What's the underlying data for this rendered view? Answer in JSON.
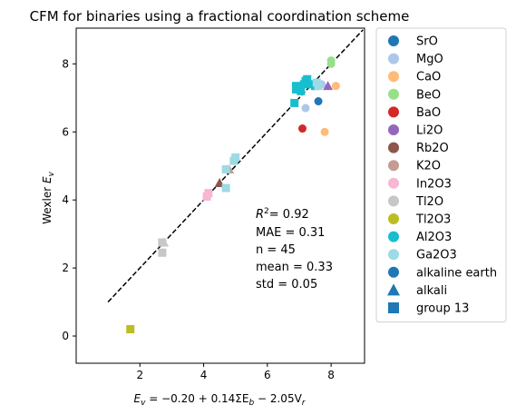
{
  "chart_data": {
    "type": "scatter",
    "title": "CFM for binaries using a fractional coordination scheme",
    "xlabel_parts": [
      "E",
      "v",
      " = −0.20 + 0.14ΣE",
      "b",
      " − 2.05V",
      "r"
    ],
    "ylabel_parts": [
      "Wexler ",
      "E",
      "v"
    ],
    "xlim": [
      0.0,
      9.05
    ],
    "ylim": [
      -0.8,
      9.05
    ],
    "xticks": [
      2,
      4,
      6,
      8
    ],
    "yticks": [
      0,
      2,
      4,
      6,
      8
    ],
    "grid": false,
    "legend_position": "outside-right",
    "reference_line": {
      "style": "dashed",
      "color": "#000000",
      "from": [
        1.0,
        1.0
      ],
      "to": [
        9.0,
        9.0
      ]
    },
    "stats": {
      "r2": "= 0.92",
      "mae": "MAE = 0.31",
      "n": "n = 45",
      "mean": "mean = 0.33",
      "std": "std = 0.05"
    },
    "series": [
      {
        "name": "SrO",
        "color": "#1f77b4",
        "marker": "circle",
        "points": [
          [
            7.6,
            6.9
          ]
        ]
      },
      {
        "name": "MgO",
        "color": "#aec7e8",
        "marker": "circle",
        "points": [
          [
            7.2,
            6.7
          ],
          [
            7.7,
            7.4
          ]
        ]
      },
      {
        "name": "CaO",
        "color": "#ffbb78",
        "marker": "circle",
        "points": [
          [
            7.8,
            6.0
          ],
          [
            8.15,
            7.35
          ]
        ]
      },
      {
        "name": "BeO",
        "color": "#98df8a",
        "marker": "circle",
        "points": [
          [
            8.0,
            8.0
          ],
          [
            8.0,
            8.1
          ]
        ]
      },
      {
        "name": "BaO",
        "color": "#d62728",
        "marker": "circle",
        "points": [
          [
            7.1,
            6.1
          ]
        ]
      },
      {
        "name": "Li2O",
        "color": "#9467bd",
        "marker": "triangle",
        "points": [
          [
            7.9,
            7.35
          ]
        ]
      },
      {
        "name": "Rb2O",
        "color": "#8c564b",
        "marker": "triangle",
        "points": [
          [
            4.5,
            4.5
          ]
        ]
      },
      {
        "name": "K2O",
        "color": "#c49c94",
        "marker": "triangle",
        "points": [
          [
            4.8,
            4.9
          ]
        ]
      },
      {
        "name": "In2O3",
        "color": "#f7b6d2",
        "marker": "square",
        "points": [
          [
            4.1,
            4.1
          ],
          [
            4.15,
            4.2
          ]
        ]
      },
      {
        "name": "Tl2O",
        "color": "#c7c7c7",
        "marker": "triangle",
        "points": [
          [
            2.75,
            2.75
          ]
        ]
      },
      {
        "name": "Tl2O3",
        "color": "#bcbd22",
        "marker": "square",
        "points": [
          [
            1.7,
            0.2
          ]
        ]
      },
      {
        "name": "Al2O3",
        "color": "#17becf",
        "marker": "square",
        "points": [
          [
            6.85,
            6.85
          ],
          [
            6.9,
            7.25
          ],
          [
            6.9,
            7.35
          ],
          [
            7.0,
            7.3
          ],
          [
            7.15,
            7.4
          ],
          [
            7.2,
            7.5
          ],
          [
            7.25,
            7.55
          ],
          [
            7.4,
            7.4
          ],
          [
            7.5,
            7.35
          ],
          [
            7.05,
            7.2
          ]
        ]
      },
      {
        "name": "Ga2O3",
        "color": "#9edae5",
        "marker": "square",
        "points": [
          [
            4.7,
            4.35
          ],
          [
            4.7,
            4.9
          ],
          [
            4.95,
            5.15
          ],
          [
            5.0,
            5.25
          ],
          [
            7.55,
            7.45
          ],
          [
            7.6,
            7.35
          ]
        ]
      },
      {
        "name": "Tl2O3",
        "color": "#c7c7c7",
        "marker": "square",
        "points": [
          [
            2.7,
            2.45
          ],
          [
            2.7,
            2.75
          ]
        ],
        "legend": false
      }
    ],
    "legend_entries": [
      {
        "label": "SrO",
        "color": "#1f77b4",
        "marker": "circle"
      },
      {
        "label": "MgO",
        "color": "#aec7e8",
        "marker": "circle"
      },
      {
        "label": "CaO",
        "color": "#ffbb78",
        "marker": "circle"
      },
      {
        "label": "BeO",
        "color": "#98df8a",
        "marker": "circle"
      },
      {
        "label": "BaO",
        "color": "#d62728",
        "marker": "circle"
      },
      {
        "label": "Li2O",
        "color": "#9467bd",
        "marker": "circle"
      },
      {
        "label": "Rb2O",
        "color": "#8c564b",
        "marker": "circle"
      },
      {
        "label": "K2O",
        "color": "#c49c94",
        "marker": "circle"
      },
      {
        "label": "In2O3",
        "color": "#f7b6d2",
        "marker": "circle"
      },
      {
        "label": "Tl2O",
        "color": "#c7c7c7",
        "marker": "circle"
      },
      {
        "label": "Tl2O3",
        "color": "#bcbd22",
        "marker": "circle"
      },
      {
        "label": "Al2O3",
        "color": "#17becf",
        "marker": "circle"
      },
      {
        "label": "Ga2O3",
        "color": "#9edae5",
        "marker": "circle"
      },
      {
        "label": "alkaline earth",
        "color": "#1f77b4",
        "marker": "circle"
      },
      {
        "label": "alkali",
        "color": "#1f77b4",
        "marker": "triangle"
      },
      {
        "label": "group 13",
        "color": "#1f77b4",
        "marker": "square"
      }
    ]
  }
}
